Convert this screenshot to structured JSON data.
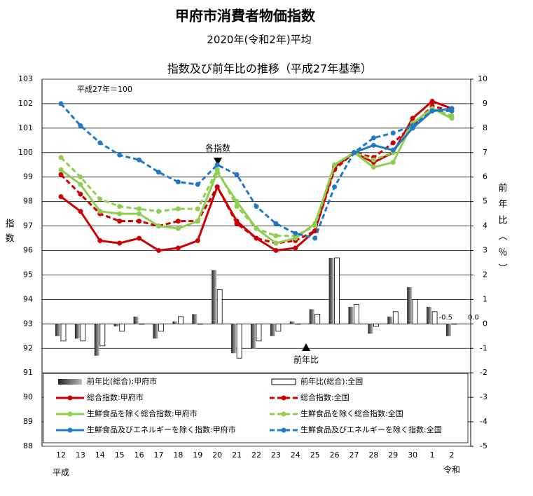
{
  "chart_data": {
    "type": "combo",
    "title": "甲府市消費者物価指数",
    "subtitle": "2020年(令和2年)平均",
    "chart_title": "指数及び前年比の推移（平成27年基準）",
    "note": "平成27年＝100",
    "annotations": [
      "各指数",
      "前年比"
    ],
    "era_labels": [
      "平成",
      "令和"
    ],
    "ylabel": "指数",
    "y2label": "前年比（％）",
    "categories": [
      "12",
      "13",
      "14",
      "15",
      "16",
      "17",
      "18",
      "19",
      "20",
      "21",
      "22",
      "23",
      "24",
      "25",
      "26",
      "27",
      "28",
      "29",
      "30",
      "1",
      "2"
    ],
    "ylim": [
      88,
      103
    ],
    "yticks": [
      88,
      89,
      90,
      91,
      92,
      93,
      94,
      95,
      96,
      97,
      98,
      99,
      100,
      101,
      102,
      103
    ],
    "y2lim": [
      -5,
      10
    ],
    "y2ticks": [
      -5,
      -4,
      -3,
      -2,
      -1,
      0,
      1,
      2,
      3,
      4,
      5,
      6,
      7,
      8,
      9,
      10
    ],
    "grid": true,
    "series": [
      {
        "name": "前年比(総合):甲府市",
        "type": "bar",
        "axis": "y2",
        "color": "#555555",
        "values": [
          -0.5,
          -0.6,
          -1.3,
          -0.1,
          0.3,
          -0.6,
          0.1,
          0.4,
          2.2,
          -1.2,
          -1.0,
          -0.5,
          0.1,
          0.6,
          2.7,
          0.7,
          -0.4,
          0.3,
          1.5,
          0.7,
          -0.5
        ],
        "value_labels": [
          null,
          null,
          null,
          null,
          null,
          null,
          null,
          null,
          null,
          null,
          null,
          null,
          null,
          null,
          null,
          null,
          null,
          null,
          null,
          null,
          "-0.5"
        ]
      },
      {
        "name": "前年比(総合):全国",
        "type": "bar",
        "axis": "y2",
        "color": "#ffffff",
        "values": [
          -0.7,
          -0.7,
          -0.9,
          -0.3,
          0.0,
          -0.3,
          0.3,
          0.0,
          1.4,
          -1.4,
          -0.7,
          -0.3,
          0.0,
          0.4,
          2.7,
          0.8,
          -0.1,
          0.5,
          1.0,
          0.5,
          0.0
        ],
        "value_labels": [
          null,
          null,
          null,
          null,
          null,
          null,
          null,
          null,
          null,
          null,
          null,
          null,
          null,
          null,
          null,
          null,
          null,
          null,
          null,
          null,
          "0.0"
        ]
      },
      {
        "name": "総合指数:甲府市",
        "type": "line",
        "dashed": false,
        "color": "#cc0000",
        "values": [
          98.2,
          97.6,
          96.4,
          96.3,
          96.5,
          96.0,
          96.1,
          96.4,
          98.6,
          97.2,
          96.5,
          96.0,
          96.1,
          96.8,
          99.4,
          100.0,
          99.6,
          100.0,
          101.4,
          102.1,
          101.8
        ]
      },
      {
        "name": "総合指数:全国",
        "type": "line",
        "dashed": true,
        "color": "#cc0000",
        "values": [
          99.1,
          98.3,
          97.5,
          97.2,
          97.2,
          97.0,
          97.2,
          97.2,
          98.6,
          97.1,
          96.5,
          96.3,
          96.4,
          96.8,
          99.3,
          100.0,
          99.8,
          100.4,
          101.1,
          101.9,
          101.7
        ]
      },
      {
        "name": "生鮮食品を除く総合指数:甲府市",
        "type": "line",
        "dashed": false,
        "color": "#8fcf4f",
        "values": [
          99.3,
          98.7,
          97.6,
          97.5,
          97.5,
          97.0,
          96.9,
          97.2,
          99.2,
          98.0,
          96.9,
          96.3,
          96.5,
          97.1,
          99.5,
          100.0,
          99.4,
          99.6,
          101.2,
          101.8,
          101.4
        ]
      },
      {
        "name": "生鮮食品を除く総合指数:全国",
        "type": "line",
        "dashed": true,
        "color": "#8fcf4f",
        "values": [
          99.8,
          99.0,
          98.1,
          97.8,
          97.7,
          97.6,
          97.7,
          97.7,
          99.3,
          97.8,
          96.9,
          96.6,
          96.6,
          97.0,
          99.5,
          100.0,
          99.7,
          100.0,
          101.2,
          101.8,
          101.5
        ]
      },
      {
        "name": "生鮮食品及びエネルギーを除く指数:甲府市",
        "type": "line",
        "dashed": false,
        "color": "#1f78c8",
        "values": [
          null,
          null,
          null,
          null,
          null,
          null,
          null,
          null,
          null,
          null,
          null,
          null,
          null,
          null,
          null,
          100.0,
          100.3,
          100.1,
          101.0,
          101.7,
          101.8
        ]
      },
      {
        "name": "生鮮食品及びエネルギーを除く指数:全国",
        "type": "line",
        "dashed": true,
        "color": "#1f78c8",
        "values": [
          102.0,
          101.1,
          100.4,
          99.9,
          99.7,
          99.2,
          98.8,
          98.7,
          99.5,
          99.1,
          97.8,
          97.1,
          96.7,
          96.5,
          98.6,
          100.0,
          100.6,
          100.8,
          101.1,
          101.7,
          101.7
        ]
      }
    ]
  }
}
